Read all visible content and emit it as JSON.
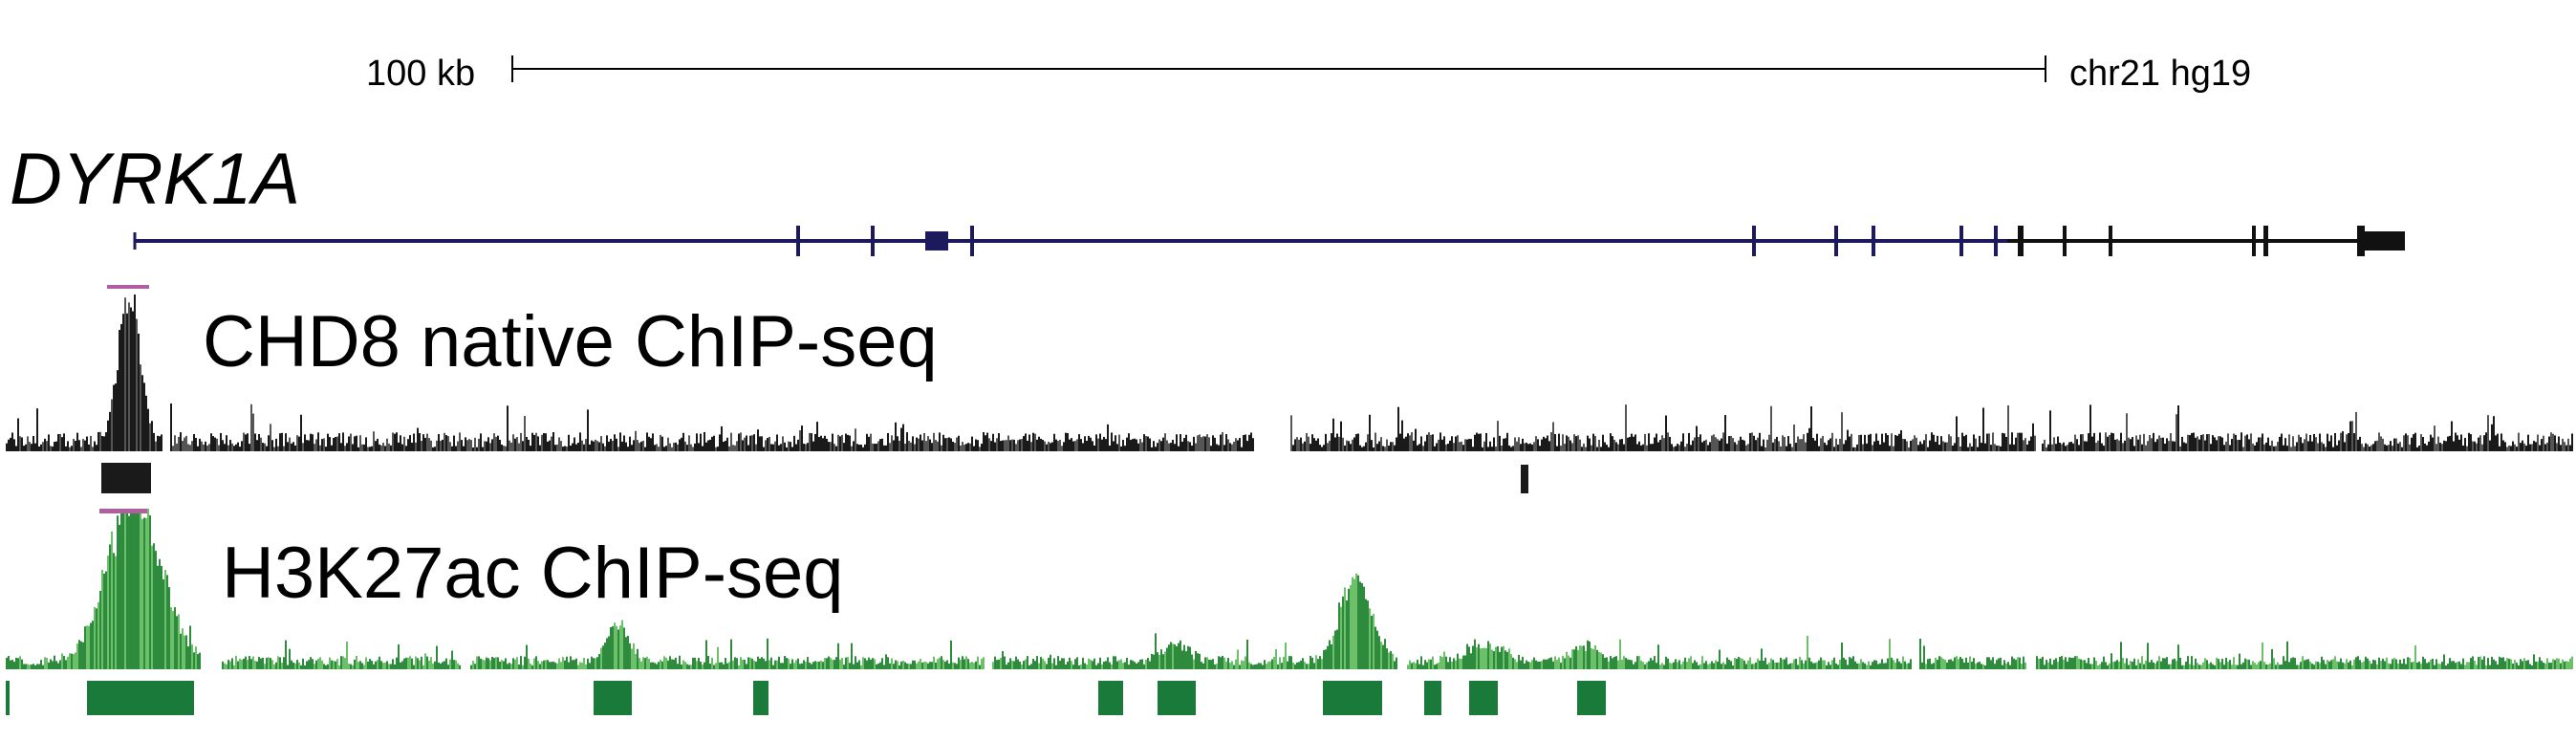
{
  "scale": {
    "label": "100 kb"
  },
  "assembly": {
    "label": "chr21 hg19"
  },
  "gene": {
    "name": "DYRK1A"
  },
  "tracks": {
    "chd8": {
      "label": "CHD8 native ChIP-seq"
    },
    "h3k27ac": {
      "label": "H3K27ac ChIP-seq"
    }
  },
  "colors": {
    "gene": "#1c1a5c",
    "chd8_signal": "#1a1a1a",
    "chd8_peaks": "#1a1a1a",
    "h3k27ac_signal": "#2e8b3e",
    "h3k27ac_signal_light": "#6cc06a",
    "h3k27ac_peaks": "#1a7a3a",
    "saturation": "#b060a0"
  }
}
